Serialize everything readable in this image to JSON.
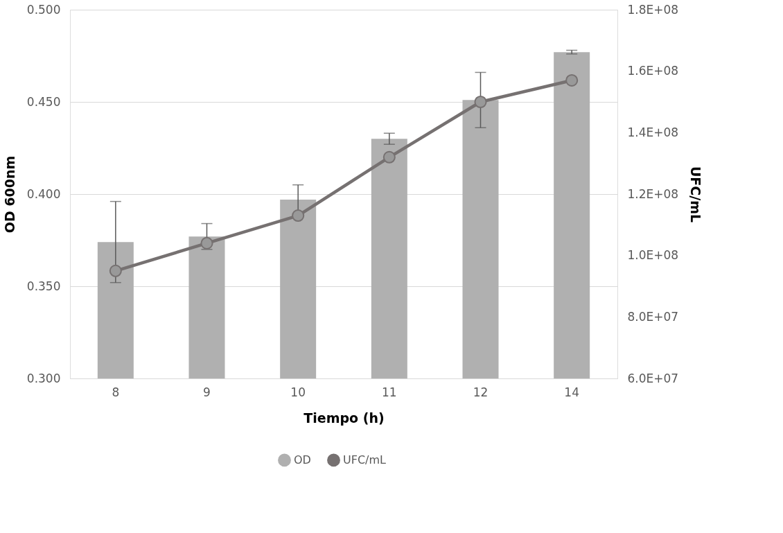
{
  "chart_data": {
    "type": "bar",
    "xlabel": "Tiempo (h)",
    "ylabel": "OD 600nm",
    "y2label": "UFC/mL",
    "categories": [
      "8",
      "9",
      "10",
      "11",
      "12",
      "14"
    ],
    "series": [
      {
        "name": "OD",
        "color": "#b0b0b0",
        "values": [
          0.374,
          0.377,
          0.397,
          0.43,
          0.451,
          0.477
        ],
        "errors": [
          0.022,
          0.007,
          0.008,
          0.003,
          0.015,
          0.001
        ]
      },
      {
        "name": "UFC/mL",
        "type": "line",
        "axis": "y2",
        "color": "#767171",
        "marker": "circle",
        "line_style": "solid",
        "values": [
          95000000,
          104000000,
          113000000,
          132000000,
          150000000,
          157000000
        ]
      }
    ],
    "ylim": [
      0.3,
      0.5
    ],
    "yticks": [
      {
        "value": 0.3,
        "label": "0.300"
      },
      {
        "value": 0.35,
        "label": "0.350"
      },
      {
        "value": 0.4,
        "label": "0.400"
      },
      {
        "value": 0.45,
        "label": "0.450"
      },
      {
        "value": 0.5,
        "label": "0.500"
      }
    ],
    "y2lim": [
      60000000,
      180000000
    ],
    "y2ticks": [
      {
        "value": 60000000,
        "label": "6.0E+07"
      },
      {
        "value": 80000000,
        "label": "8.0E+07"
      },
      {
        "value": 100000000,
        "label": "1.0E+08"
      },
      {
        "value": 120000000,
        "label": "1.2E+08"
      },
      {
        "value": 140000000,
        "label": "1.4E+08"
      },
      {
        "value": 160000000,
        "label": "1.6E+08"
      },
      {
        "value": 180000000,
        "label": "1.8E+08"
      }
    ],
    "grid": "y",
    "legend": "bottom"
  }
}
